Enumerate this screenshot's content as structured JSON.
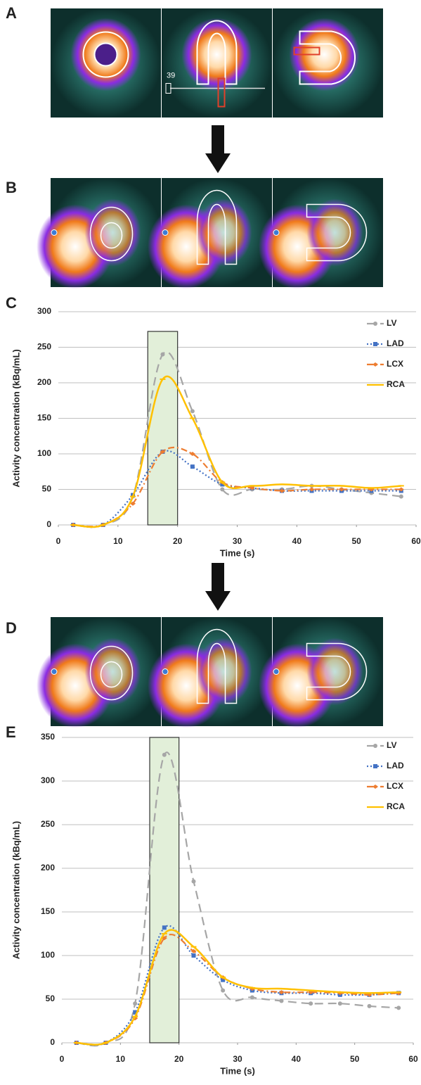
{
  "panel_labels": [
    "A",
    "B",
    "C",
    "D",
    "E"
  ],
  "image_text": "39",
  "chart_data": [
    {
      "type": "line",
      "y_label": "Activity concentration (kBq/mL)",
      "x_label": "Time (s)",
      "x": [
        2.5,
        7.5,
        12.5,
        17.5,
        22.5,
        27.5,
        32.5,
        37.5,
        42.5,
        47.5,
        52.5,
        57.5
      ],
      "xlim": [
        0,
        60
      ],
      "xticks": [
        0,
        10,
        20,
        30,
        40,
        50,
        60
      ],
      "ylim": [
        0,
        300
      ],
      "yticks": [
        0,
        50,
        100,
        150,
        200,
        250,
        300
      ],
      "grid": true,
      "shaded_range": [
        15,
        20
      ],
      "legend": "upper right",
      "series": [
        {
          "name": "LV",
          "color": "#a6a6a6",
          "dash": "dash",
          "marker": "circle",
          "values": [
            0,
            0,
            40,
            240,
            160,
            50,
            50,
            50,
            55,
            50,
            45,
            40
          ]
        },
        {
          "name": "LAD",
          "color": "#4472c4",
          "dash": "dot",
          "marker": "square",
          "values": [
            0,
            0,
            42,
            103,
            82,
            57,
            52,
            48,
            48,
            48,
            48,
            48
          ]
        },
        {
          "name": "LCX",
          "color": "#ed7d31",
          "dash": "dashdot",
          "marker": "diamond",
          "values": [
            0,
            0,
            30,
            103,
            100,
            60,
            52,
            48,
            50,
            50,
            50,
            50
          ]
        },
        {
          "name": "RCA",
          "color": "#ffc000",
          "dash": "solid",
          "marker": "dash",
          "values": [
            0,
            0,
            40,
            205,
            150,
            60,
            55,
            57,
            55,
            55,
            52,
            55
          ]
        }
      ]
    },
    {
      "type": "line",
      "y_label": "Activity concentration (kBq/mL)",
      "x_label": "Time (s)",
      "x": [
        2.5,
        7.5,
        12.5,
        17.5,
        22.5,
        27.5,
        32.5,
        37.5,
        42.5,
        47.5,
        52.5,
        57.5
      ],
      "xlim": [
        0,
        60
      ],
      "xticks": [
        0,
        10,
        20,
        30,
        40,
        50,
        60
      ],
      "ylim": [
        0,
        350
      ],
      "yticks": [
        0,
        50,
        100,
        150,
        200,
        250,
        300,
        350
      ],
      "grid": true,
      "shaded_range": [
        15,
        20
      ],
      "legend": "upper right",
      "series": [
        {
          "name": "LV",
          "color": "#a6a6a6",
          "dash": "dash",
          "marker": "circle",
          "values": [
            0,
            0,
            45,
            330,
            185,
            60,
            52,
            48,
            45,
            45,
            42,
            40
          ]
        },
        {
          "name": "LAD",
          "color": "#4472c4",
          "dash": "dot",
          "marker": "square",
          "values": [
            0,
            0,
            35,
            132,
            100,
            72,
            60,
            57,
            57,
            55,
            55,
            57
          ]
        },
        {
          "name": "LCX",
          "color": "#ed7d31",
          "dash": "dashdot",
          "marker": "diamond",
          "values": [
            0,
            0,
            28,
            120,
            105,
            75,
            62,
            58,
            58,
            57,
            55,
            57
          ]
        },
        {
          "name": "RCA",
          "color": "#ffc000",
          "dash": "solid",
          "marker": "dash",
          "values": [
            0,
            0,
            30,
            125,
            110,
            75,
            63,
            62,
            60,
            58,
            57,
            58
          ]
        }
      ]
    }
  ]
}
